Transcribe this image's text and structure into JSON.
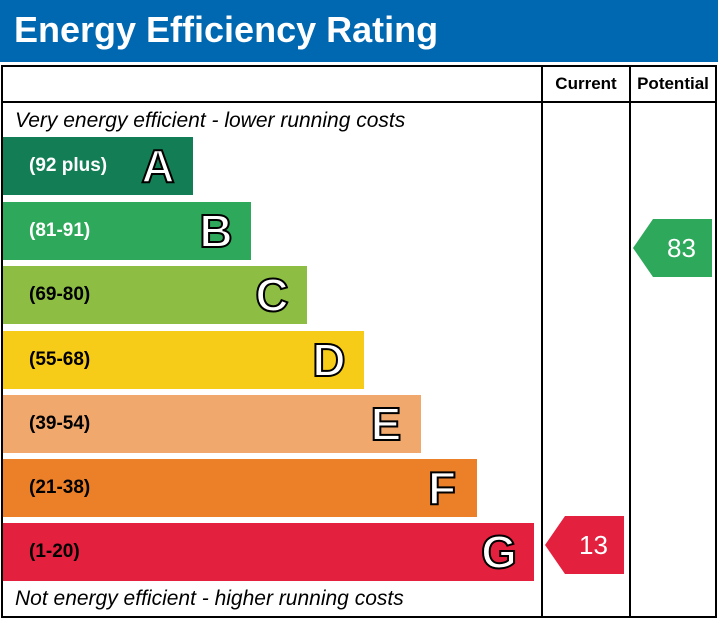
{
  "title": "Energy Efficiency Rating",
  "columns": {
    "current": "Current",
    "potential": "Potential"
  },
  "captions": {
    "top": "Very energy efficient - lower running costs",
    "bottom": "Not energy efficient - higher running costs"
  },
  "bands": [
    {
      "letter": "A",
      "range": "(92 plus)",
      "color": "#137e55",
      "text_color": "#ffffff"
    },
    {
      "letter": "B",
      "range": "(81-91)",
      "color": "#2ea85a",
      "text_color": "#ffffff"
    },
    {
      "letter": "C",
      "range": "(69-80)",
      "color": "#8dbe43",
      "text_color": "#000000"
    },
    {
      "letter": "D",
      "range": "(55-68)",
      "color": "#f6cc18",
      "text_color": "#000000"
    },
    {
      "letter": "E",
      "range": "(39-54)",
      "color": "#f1a86d",
      "text_color": "#000000"
    },
    {
      "letter": "F",
      "range": "(21-38)",
      "color": "#ec8028",
      "text_color": "#000000"
    },
    {
      "letter": "G",
      "range": "(1-20)",
      "color": "#e3203e",
      "text_color": "#000000"
    }
  ],
  "ratings": {
    "current": {
      "value": "13",
      "band": "G",
      "color": "#e3203e"
    },
    "potential": {
      "value": "83",
      "band": "B",
      "color": "#2ea85a"
    }
  }
}
